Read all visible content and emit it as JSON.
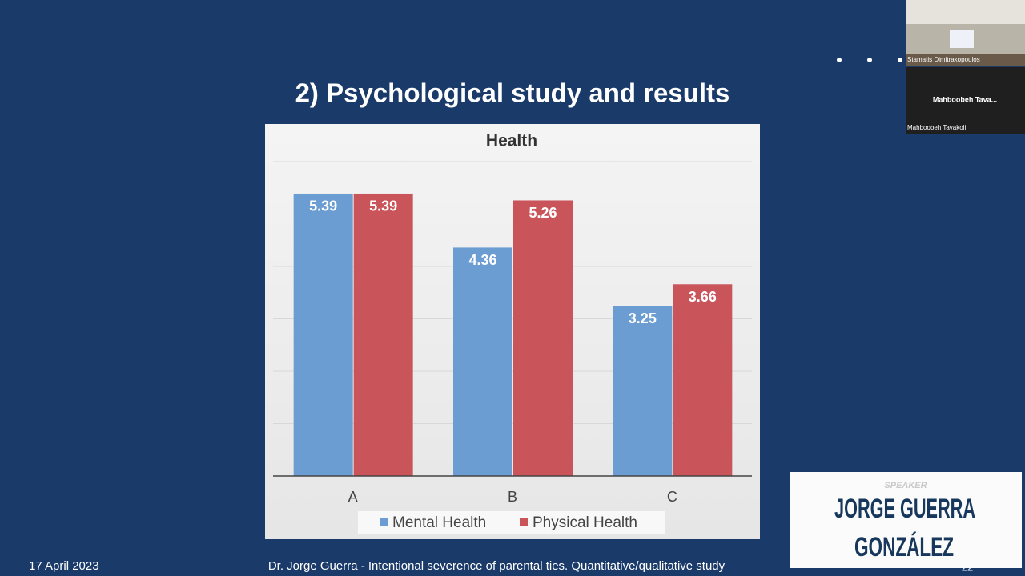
{
  "slide": {
    "title": "2) Psychological study and results",
    "date": "17 April 2023",
    "footer": "Dr. Jorge Guerra  - Intentional severence of parental ties. Quantitative/qualitative study",
    "page": "22"
  },
  "chart_data": {
    "type": "bar",
    "title": "Health",
    "categories": [
      "A",
      "B",
      "C"
    ],
    "series": [
      {
        "name": "Mental Health",
        "color": "#6b9cd2",
        "values": [
          5.39,
          4.36,
          3.25
        ]
      },
      {
        "name": "Physical Health",
        "color": "#c9545a",
        "values": [
          5.39,
          5.26,
          3.66
        ]
      }
    ],
    "ylim": [
      0,
      6
    ],
    "yticks": [
      0,
      1,
      2,
      3,
      4,
      5,
      6
    ],
    "grid": true,
    "legend": "bottom"
  },
  "video": {
    "tiles": [
      {
        "name": "Stamatis Dimitrakopoulos"
      },
      {
        "label": "Mahboobeh  Tava...",
        "name": "Mahboobeh Tavakoli"
      }
    ]
  },
  "speaker": {
    "role": "SPEAKER",
    "name_lines": [
      "JORGE GUERRA",
      "GONZÁLEZ"
    ]
  }
}
